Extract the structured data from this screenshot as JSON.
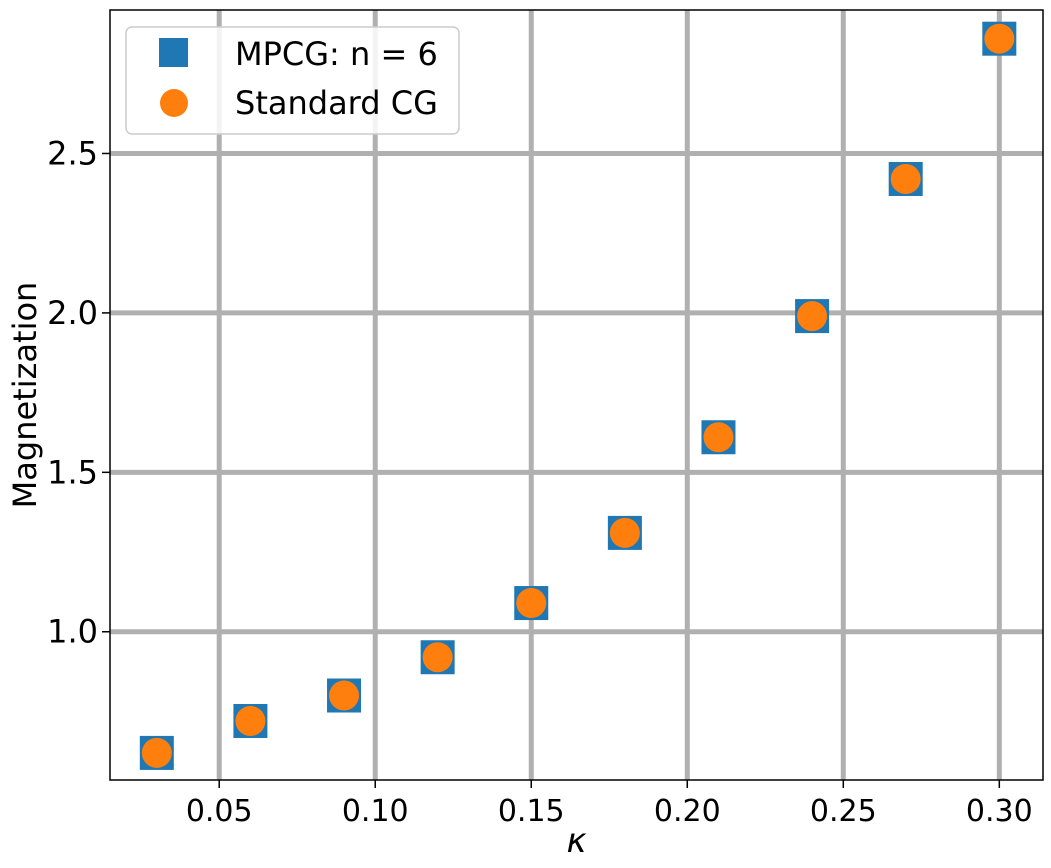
{
  "chart_data": {
    "type": "scatter",
    "xlabel": "κ",
    "ylabel": "Magnetization",
    "xlim": [
      0.015,
      0.314
    ],
    "ylim": [
      0.535,
      2.95
    ],
    "x_ticks": [
      0.05,
      0.1,
      0.15,
      0.2,
      0.25,
      0.3
    ],
    "x_tick_labels": [
      "0.05",
      "0.10",
      "0.15",
      "0.20",
      "0.25",
      "0.30"
    ],
    "y_ticks": [
      1.0,
      1.5,
      2.0,
      2.5
    ],
    "y_tick_labels": [
      "1.0",
      "1.5",
      "2.0",
      "2.5"
    ],
    "grid": true,
    "legend_position": "top-left",
    "series": [
      {
        "name": "MPCG: n = 6",
        "marker": "square",
        "color": "#1f77b4",
        "x": [
          0.03,
          0.06,
          0.09,
          0.12,
          0.15,
          0.18,
          0.21,
          0.24,
          0.27,
          0.3
        ],
        "y": [
          0.62,
          0.72,
          0.8,
          0.92,
          1.09,
          1.31,
          1.61,
          1.99,
          2.42,
          2.86
        ]
      },
      {
        "name": "Standard CG",
        "marker": "circle",
        "color": "#ff7f0e",
        "x": [
          0.03,
          0.06,
          0.09,
          0.12,
          0.15,
          0.18,
          0.21,
          0.24,
          0.27,
          0.3
        ],
        "y": [
          0.62,
          0.72,
          0.8,
          0.92,
          1.09,
          1.31,
          1.61,
          1.99,
          2.42,
          2.86
        ]
      }
    ]
  }
}
